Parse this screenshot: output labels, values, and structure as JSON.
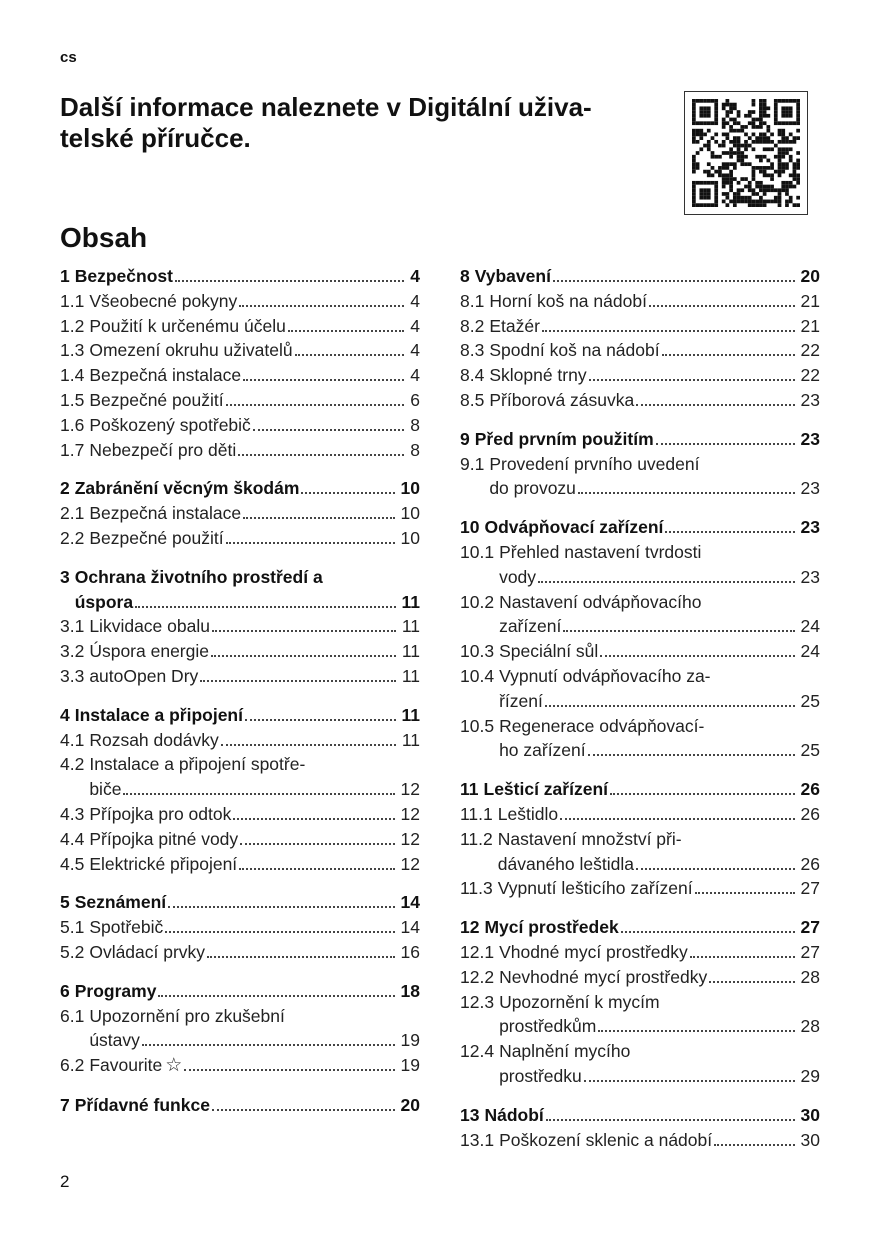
{
  "language_tag": "cs",
  "headline": "Další informace naleznete v Digitální uživa-telské příručce.",
  "headline_lines": [
    "Další informace naleznete v Digitální uživa-",
    "telské příručce."
  ],
  "qr_code": "qr-code-icon",
  "toc_title": "Obsah",
  "toc": {
    "left": [
      {
        "num": "1",
        "lines": [
          "Bezpečnost"
        ],
        "page": "4",
        "entries": [
          {
            "num": "1.1",
            "lines": [
              "Všeobecné pokyny"
            ],
            "page": "4"
          },
          {
            "num": "1.2",
            "lines": [
              "Použití k určenému účelu"
            ],
            "page": "4"
          },
          {
            "num": "1.3",
            "lines": [
              "Omezení okruhu uživatelů"
            ],
            "page": "4"
          },
          {
            "num": "1.4",
            "lines": [
              "Bezpečná instalace"
            ],
            "page": "4"
          },
          {
            "num": "1.5",
            "lines": [
              "Bezpečné použití"
            ],
            "page": "6"
          },
          {
            "num": "1.6",
            "lines": [
              "Poškozený spotřebič"
            ],
            "page": "8"
          },
          {
            "num": "1.7",
            "lines": [
              "Nebezpečí pro děti"
            ],
            "page": "8"
          }
        ]
      },
      {
        "num": "2",
        "lines": [
          "Zabránění věcným škodám"
        ],
        "page": "10",
        "entries": [
          {
            "num": "2.1",
            "lines": [
              "Bezpečná instalace"
            ],
            "page": "10"
          },
          {
            "num": "2.2",
            "lines": [
              "Bezpečné použití"
            ],
            "page": "10"
          }
        ]
      },
      {
        "num": "3",
        "lines": [
          "Ochrana životního prostředí a",
          "úspora"
        ],
        "page": "11",
        "entries": [
          {
            "num": "3.1",
            "lines": [
              "Likvidace obalu"
            ],
            "page": "11"
          },
          {
            "num": "3.2",
            "lines": [
              "Úspora energie"
            ],
            "page": "11"
          },
          {
            "num": "3.3",
            "lines": [
              "autoOpen Dry"
            ],
            "page": "11"
          }
        ]
      },
      {
        "num": "4",
        "lines": [
          "Instalace a připojení"
        ],
        "page": "11",
        "entries": [
          {
            "num": "4.1",
            "lines": [
              "Rozsah dodávky"
            ],
            "page": "11"
          },
          {
            "num": "4.2",
            "lines": [
              "Instalace a připojení spotře-",
              "biče"
            ],
            "page": "12"
          },
          {
            "num": "4.3",
            "lines": [
              "Přípojka pro odtok"
            ],
            "page": "12"
          },
          {
            "num": "4.4",
            "lines": [
              "Přípojka pitné vody"
            ],
            "page": "12"
          },
          {
            "num": "4.5",
            "lines": [
              "Elektrické připojení"
            ],
            "page": "12"
          }
        ]
      },
      {
        "num": "5",
        "lines": [
          "Seznámení"
        ],
        "page": "14",
        "entries": [
          {
            "num": "5.1",
            "lines": [
              "Spotřebič"
            ],
            "page": "14"
          },
          {
            "num": "5.2",
            "lines": [
              "Ovládací prvky"
            ],
            "page": "16"
          }
        ]
      },
      {
        "num": "6",
        "lines": [
          "Programy"
        ],
        "page": "18",
        "entries": [
          {
            "num": "6.1",
            "lines": [
              "Upozornění pro zkušební",
              "ústavy"
            ],
            "page": "19"
          },
          {
            "num": "6.2",
            "lines": [
              "Favourite"
            ],
            "icon": "star-outline-icon",
            "page": "19"
          }
        ]
      },
      {
        "num": "7",
        "lines": [
          "Přídavné funkce"
        ],
        "page": "20",
        "entries": []
      }
    ],
    "right": [
      {
        "num": "8",
        "lines": [
          "Vybavení"
        ],
        "page": "20",
        "entries": [
          {
            "num": "8.1",
            "lines": [
              "Horní koš na nádobí"
            ],
            "page": "21"
          },
          {
            "num": "8.2",
            "lines": [
              "Etažér"
            ],
            "page": "21"
          },
          {
            "num": "8.3",
            "lines": [
              "Spodní koš na nádobí"
            ],
            "page": "22"
          },
          {
            "num": "8.4",
            "lines": [
              "Sklopné trny"
            ],
            "page": "22"
          },
          {
            "num": "8.5",
            "lines": [
              "Příborová zásuvka"
            ],
            "page": "23"
          }
        ]
      },
      {
        "num": "9",
        "lines": [
          "Před prvním použitím"
        ],
        "page": "23",
        "entries": [
          {
            "num": "9.1",
            "lines": [
              "Provedení prvního uvedení",
              "do provozu"
            ],
            "page": "23"
          }
        ]
      },
      {
        "num": "10",
        "lines": [
          "Odvápňovací zařízení"
        ],
        "page": "23",
        "entries": [
          {
            "num": "10.1",
            "lines": [
              "Přehled nastavení tvrdosti",
              "vody"
            ],
            "page": "23"
          },
          {
            "num": "10.2",
            "lines": [
              "Nastavení odvápňovacího",
              "zařízení"
            ],
            "page": "24"
          },
          {
            "num": "10.3",
            "lines": [
              "Speciální sůl"
            ],
            "page": "24"
          },
          {
            "num": "10.4",
            "lines": [
              "Vypnutí odvápňovacího za-",
              "řízení"
            ],
            "page": "25"
          },
          {
            "num": "10.5",
            "lines": [
              "Regenerace odvápňovací-",
              "ho zařízení"
            ],
            "page": "25"
          }
        ]
      },
      {
        "num": "11",
        "lines": [
          "Lešticí zařízení"
        ],
        "page": "26",
        "entries": [
          {
            "num": "11.1",
            "lines": [
              "Leštidlo"
            ],
            "page": "26"
          },
          {
            "num": "11.2",
            "lines": [
              "Nastavení množství při-",
              "dávaného leštidla"
            ],
            "page": "26"
          },
          {
            "num": "11.3",
            "lines": [
              "Vypnutí lešticího zařízení"
            ],
            "page": "27"
          }
        ]
      },
      {
        "num": "12",
        "lines": [
          "Mycí prostředek"
        ],
        "page": "27",
        "entries": [
          {
            "num": "12.1",
            "lines": [
              "Vhodné mycí prostředky"
            ],
            "page": "27"
          },
          {
            "num": "12.2",
            "lines": [
              "Nevhodné mycí prostředky"
            ],
            "page": "28"
          },
          {
            "num": "12.3",
            "lines": [
              "Upozornění k mycím",
              "prostředkům"
            ],
            "page": "28"
          },
          {
            "num": "12.4",
            "lines": [
              "Naplnění mycího",
              "prostředku"
            ],
            "page": "29"
          }
        ]
      },
      {
        "num": "13",
        "lines": [
          "Nádobí"
        ],
        "page": "30",
        "entries": [
          {
            "num": "13.1",
            "lines": [
              "Poškození sklenic a nádobí"
            ],
            "page": "30"
          }
        ]
      }
    ]
  },
  "page_number": "2"
}
